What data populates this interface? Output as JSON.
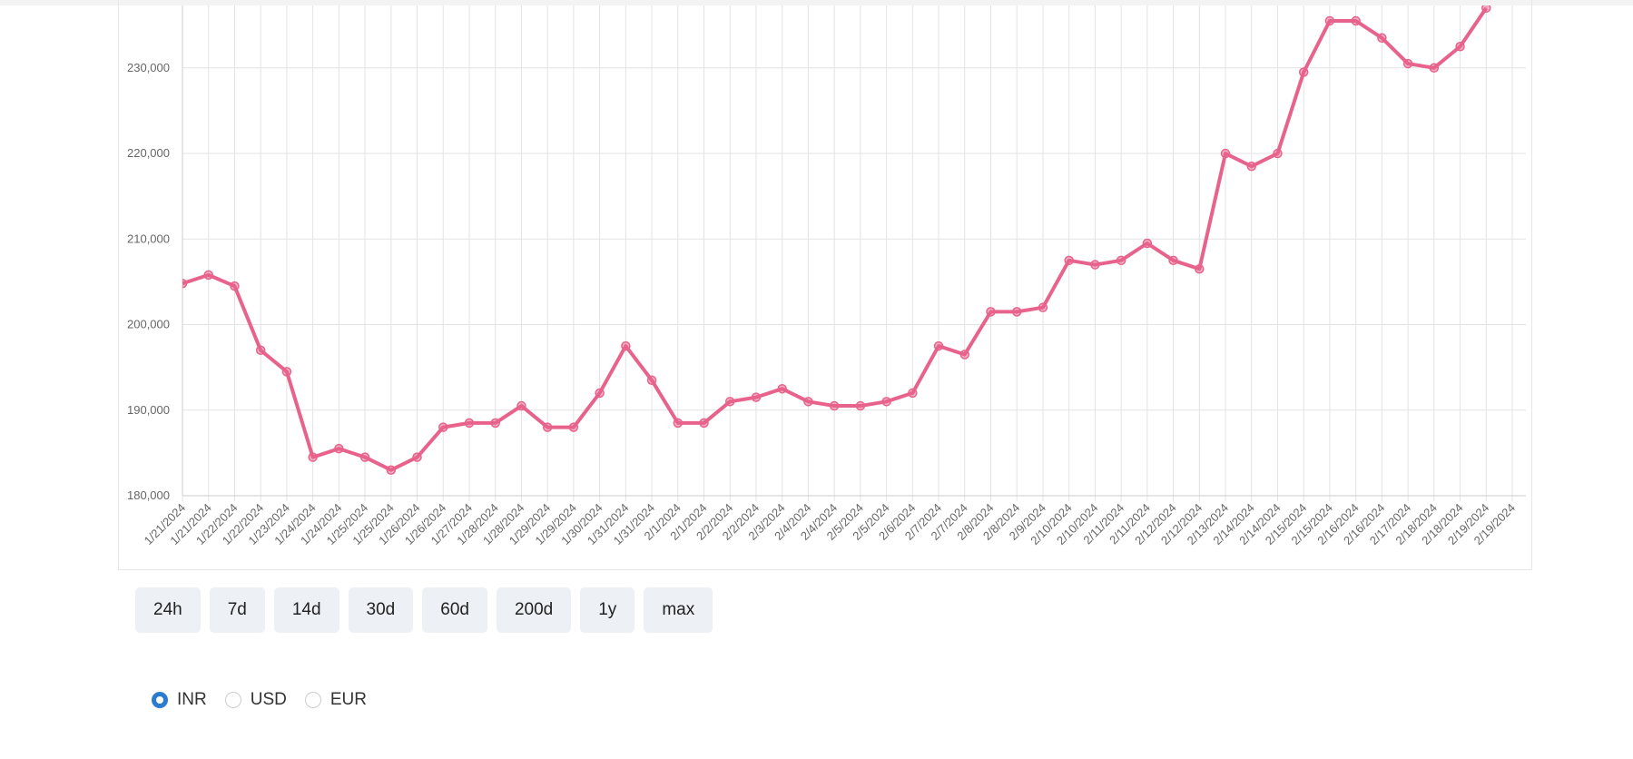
{
  "chart_data": {
    "type": "line",
    "categories": [
      "1/21/2024",
      "1/21/2024",
      "1/22/2024",
      "1/22/2024",
      "1/23/2024",
      "1/24/2024",
      "1/24/2024",
      "1/25/2024",
      "1/25/2024",
      "1/26/2024",
      "1/26/2024",
      "1/27/2024",
      "1/28/2024",
      "1/28/2024",
      "1/29/2024",
      "1/29/2024",
      "1/30/2024",
      "1/31/2024",
      "1/31/2024",
      "2/1/2024",
      "2/1/2024",
      "2/2/2024",
      "2/2/2024",
      "2/3/2024",
      "2/4/2024",
      "2/4/2024",
      "2/5/2024",
      "2/5/2024",
      "2/6/2024",
      "2/7/2024",
      "2/7/2024",
      "2/8/2024",
      "2/8/2024",
      "2/9/2024",
      "2/10/2024",
      "2/10/2024",
      "2/11/2024",
      "2/11/2024",
      "2/12/2024",
      "2/12/2024",
      "2/13/2024",
      "2/14/2024",
      "2/14/2024",
      "2/15/2024",
      "2/15/2024",
      "2/16/2024",
      "2/16/2024",
      "2/17/2024",
      "2/18/2024",
      "2/18/2024",
      "2/19/2024",
      "2/19/2024"
    ],
    "values": [
      204800,
      205800,
      204500,
      197000,
      194500,
      184500,
      185500,
      184500,
      183000,
      184500,
      188000,
      188500,
      188500,
      190500,
      188000,
      188000,
      192000,
      197500,
      193500,
      188500,
      188500,
      191000,
      191500,
      192500,
      191000,
      190500,
      190500,
      191000,
      192000,
      197500,
      196500,
      201500,
      201500,
      202000,
      207500,
      207000,
      207500,
      209500,
      207500,
      206500,
      220000,
      218500,
      220000,
      229500,
      235500,
      235500,
      233500,
      230500,
      230000,
      232500,
      237000,
      null
    ],
    "color": "#e8638b",
    "ylim": [
      180000,
      237300
    ],
    "yticks": [
      {
        "value": 180000,
        "label": "180,000"
      },
      {
        "value": 190000,
        "label": "190,000"
      },
      {
        "value": 200000,
        "label": "200,000"
      },
      {
        "value": 210000,
        "label": "210,000"
      },
      {
        "value": 220000,
        "label": "220,000"
      },
      {
        "value": 230000,
        "label": "230,000"
      }
    ],
    "grid": true
  },
  "controls": {
    "ranges": [
      "24h",
      "7d",
      "14d",
      "30d",
      "60d",
      "200d",
      "1y",
      "max"
    ],
    "currencies": [
      "INR",
      "USD",
      "EUR"
    ],
    "selected_currency": "INR"
  }
}
